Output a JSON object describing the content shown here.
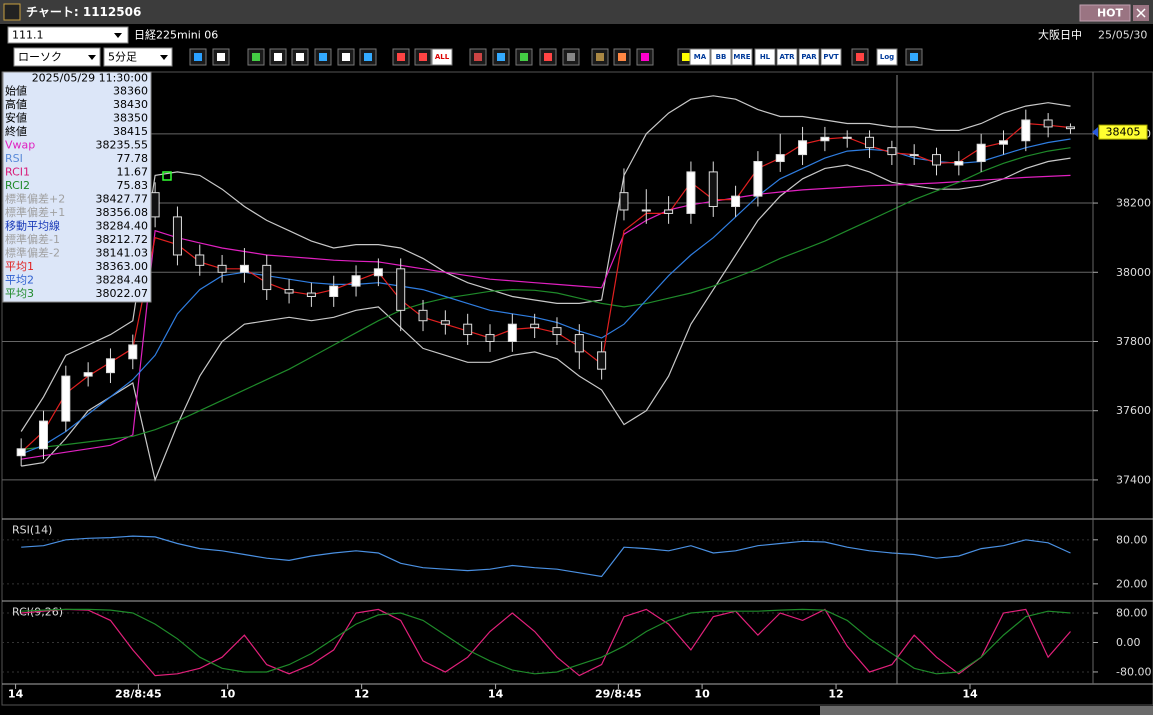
{
  "window": {
    "title": "チャート: 1112506",
    "hot": "HOT"
  },
  "toolbar": {
    "code": "111.1",
    "instrument": "日経225mini 06",
    "session": "大阪日中",
    "date": "25/05/30",
    "chart_style": "ローソク",
    "interval": "5分足",
    "buttons": [
      "ALL",
      "MA",
      "BB",
      "MRE",
      "HL",
      "ATR",
      "PAR",
      "PVT",
      "Log"
    ]
  },
  "info_box": {
    "datetime": "2025/05/29 11:30:00",
    "rows": [
      {
        "label": "始値",
        "value": "38360",
        "color": "#000000"
      },
      {
        "label": "高値",
        "value": "38430",
        "color": "#000000"
      },
      {
        "label": "安値",
        "value": "38350",
        "color": "#000000"
      },
      {
        "label": "終値",
        "value": "38415",
        "color": "#000000"
      },
      {
        "label": "Vwap",
        "value": "38235.55",
        "color": "#e020c0"
      },
      {
        "label": "RSI",
        "value": "77.78",
        "color": "#5a8ad8"
      },
      {
        "label": "RCI1",
        "value": "11.67",
        "color": "#d81a78"
      },
      {
        "label": "RCI2",
        "value": "75.83",
        "color": "#1f8a2a"
      },
      {
        "label": "標準偏差+2",
        "value": "38427.77",
        "color": "#a0a0a0"
      },
      {
        "label": "標準偏差+1",
        "value": "38356.08",
        "color": "#a0a0a0"
      },
      {
        "label": "移動平均線",
        "value": "38284.40",
        "color": "#1a3ab8"
      },
      {
        "label": "標準偏差-1",
        "value": "38212.72",
        "color": "#a0a0a0"
      },
      {
        "label": "標準偏差-2",
        "value": "38141.03",
        "color": "#a0a0a0"
      },
      {
        "label": "平均1",
        "value": "38363.00",
        "color": "#e02020"
      },
      {
        "label": "平均2",
        "value": "38284.40",
        "color": "#2f60d0"
      },
      {
        "label": "平均3",
        "value": "38022.07",
        "color": "#1f8a2a"
      }
    ]
  },
  "chart_data": [
    {
      "type": "candlestick",
      "x": [
        2,
        6,
        10,
        14,
        18,
        22,
        26,
        30,
        34,
        38,
        42,
        46,
        50,
        54,
        58,
        62,
        66,
        70,
        74,
        78,
        82,
        86,
        90,
        94,
        98,
        102,
        106,
        110,
        114,
        118,
        122,
        126,
        130,
        134,
        138,
        142,
        146,
        150,
        154,
        158,
        162,
        166,
        170,
        174,
        178,
        182,
        186,
        190
      ],
      "open": [
        37470,
        37490,
        37570,
        37700,
        37710,
        37750,
        38230,
        38160,
        38050,
        38020,
        38000,
        38020,
        37950,
        37940,
        37930,
        37960,
        37990,
        38010,
        37890,
        37860,
        37850,
        37820,
        37800,
        37850,
        37840,
        37820,
        37770,
        38230,
        38180,
        38180,
        38170,
        38290,
        38190,
        38220,
        38320,
        38340,
        38380,
        38390,
        38390,
        38360,
        38340,
        38340,
        38310,
        38320,
        38370,
        38380,
        38440,
        38420
      ],
      "high": [
        37520,
        37600,
        37730,
        37740,
        37780,
        37820,
        38260,
        38190,
        38080,
        38050,
        38070,
        38050,
        37980,
        37970,
        37990,
        38020,
        38040,
        38040,
        37920,
        37890,
        37880,
        37850,
        37880,
        37880,
        37870,
        37850,
        37800,
        38300,
        38240,
        38220,
        38320,
        38320,
        38250,
        38350,
        38400,
        38420,
        38420,
        38410,
        38410,
        38380,
        38370,
        38360,
        38350,
        38400,
        38410,
        38470,
        38460,
        38430
      ],
      "low": [
        37440,
        37460,
        37540,
        37670,
        37680,
        37720,
        38130,
        38020,
        37990,
        37970,
        37970,
        37920,
        37910,
        37900,
        37900,
        37930,
        37960,
        37830,
        37830,
        37820,
        37790,
        37770,
        37770,
        37810,
        37790,
        37720,
        37690,
        38150,
        38140,
        38140,
        38140,
        38160,
        38160,
        38190,
        38290,
        38310,
        38350,
        38360,
        38330,
        38310,
        38310,
        38280,
        38280,
        38290,
        38340,
        38350,
        38390,
        38400
      ],
      "close": [
        37490,
        37570,
        37700,
        37710,
        37750,
        37790,
        38160,
        38050,
        38020,
        38000,
        38020,
        37950,
        37940,
        37930,
        37960,
        37990,
        38010,
        37890,
        37860,
        37850,
        37820,
        37800,
        37850,
        37840,
        37820,
        37770,
        37720,
        38180,
        38180,
        38170,
        38290,
        38190,
        38220,
        38320,
        38340,
        38380,
        38390,
        38390,
        38360,
        38340,
        38340,
        38310,
        38320,
        38370,
        38380,
        38440,
        38420,
        38415
      ],
      "series": [
        {
          "color": "#c8c8c8",
          "values": [
            37540,
            37640,
            37760,
            37790,
            37820,
            37860,
            38280,
            38290,
            38280,
            38240,
            38190,
            38150,
            38120,
            38090,
            38070,
            38080,
            38080,
            38070,
            38040,
            38000,
            37970,
            37950,
            37930,
            37920,
            37910,
            37910,
            37920,
            38280,
            38400,
            38460,
            38500,
            38510,
            38500,
            38470,
            38450,
            38450,
            38440,
            38430,
            38430,
            38420,
            38420,
            38410,
            38410,
            38430,
            38460,
            38480,
            38490,
            38480
          ]
        },
        {
          "color": "#c8c8c8",
          "values": [
            37440,
            37450,
            37520,
            37600,
            37640,
            37680,
            37400,
            37560,
            37700,
            37800,
            37850,
            37860,
            37870,
            37860,
            37870,
            37890,
            37900,
            37840,
            37780,
            37760,
            37740,
            37740,
            37760,
            37770,
            37750,
            37700,
            37660,
            37560,
            37600,
            37700,
            37850,
            37950,
            38050,
            38150,
            38220,
            38270,
            38300,
            38310,
            38290,
            38260,
            38250,
            38240,
            38240,
            38250,
            38270,
            38300,
            38320,
            38330
          ]
        },
        {
          "color": "#e020c0",
          "values": [
            37460,
            37470,
            37480,
            37490,
            37500,
            37530,
            38120,
            38100,
            38085,
            38070,
            38060,
            38050,
            38045,
            38040,
            38035,
            38032,
            38030,
            38020,
            38010,
            38000,
            37990,
            37980,
            37975,
            37970,
            37965,
            37960,
            37955,
            38110,
            38150,
            38180,
            38195,
            38205,
            38215,
            38225,
            38232,
            38238,
            38242,
            38246,
            38250,
            38252,
            38255,
            38258,
            38262,
            38266,
            38270,
            38274,
            38277,
            38280
          ]
        },
        {
          "color": "#1f8a2a",
          "values": [
            37488,
            37495,
            37502,
            37510,
            37518,
            37526,
            37545,
            37570,
            37600,
            37630,
            37660,
            37690,
            37720,
            37755,
            37790,
            37825,
            37860,
            37890,
            37910,
            37925,
            37935,
            37945,
            37950,
            37948,
            37940,
            37925,
            37910,
            37900,
            37910,
            37925,
            37940,
            37960,
            37985,
            38010,
            38040,
            38065,
            38090,
            38120,
            38150,
            38180,
            38210,
            38235,
            38260,
            38290,
            38315,
            38335,
            38350,
            38360
          ]
        },
        {
          "color": "#2f7de0",
          "values": [
            37475,
            37500,
            37540,
            37590,
            37640,
            37690,
            37760,
            37880,
            37950,
            37990,
            38000,
            37990,
            37980,
            37970,
            37965,
            37965,
            37970,
            37960,
            37950,
            37930,
            37910,
            37890,
            37880,
            37870,
            37855,
            37830,
            37810,
            37850,
            37920,
            37990,
            38050,
            38100,
            38160,
            38220,
            38270,
            38300,
            38330,
            38350,
            38355,
            38350,
            38330,
            38320,
            38315,
            38320,
            38340,
            38360,
            38375,
            38385
          ]
        },
        {
          "color": "#e02020",
          "values": [
            37480,
            37540,
            37650,
            37700,
            37740,
            37780,
            38100,
            38080,
            38030,
            38010,
            38010,
            37970,
            37945,
            37935,
            37950,
            37975,
            38000,
            37920,
            37870,
            37850,
            37830,
            37810,
            37835,
            37840,
            37825,
            37785,
            37735,
            38120,
            38170,
            38170,
            38260,
            38210,
            38210,
            38300,
            38330,
            38370,
            38385,
            38390,
            38365,
            38345,
            38340,
            38315,
            38318,
            38360,
            38375,
            38430,
            38425,
            38418
          ]
        }
      ],
      "xlim": [
        0,
        193.5
      ],
      "xticks": [
        {
          "value": 1,
          "label": "14"
        },
        {
          "value": 23,
          "label": "28/8:45"
        },
        {
          "value": 39,
          "label": "10"
        },
        {
          "value": 63,
          "label": "12"
        },
        {
          "value": 87,
          "label": "14"
        },
        {
          "value": 109,
          "label": "29/8:45"
        },
        {
          "value": 124,
          "label": "10"
        },
        {
          "value": 148,
          "label": "12"
        },
        {
          "value": 172,
          "label": "14"
        }
      ],
      "ylim": [
        37290,
        38570
      ],
      "yticks": [
        37400,
        37600,
        37800,
        38000,
        38200,
        38400
      ],
      "grid": true,
      "last_price": 38405
    },
    {
      "type": "line",
      "title": "RSI(14)",
      "ylim": [
        -2,
        107
      ],
      "yticks": [
        {
          "value": 20,
          "label": "20.00"
        },
        {
          "value": 80,
          "label": "80.00"
        }
      ],
      "series": [
        {
          "color": "#4a90e2",
          "values": [
            70,
            72,
            80,
            82,
            83,
            85,
            84,
            75,
            68,
            65,
            60,
            55,
            52,
            58,
            62,
            65,
            62,
            48,
            42,
            40,
            38,
            40,
            45,
            42,
            40,
            35,
            30,
            70,
            68,
            65,
            72,
            62,
            65,
            72,
            75,
            78,
            77,
            70,
            65,
            62,
            60,
            55,
            58,
            68,
            72,
            80,
            76,
            62
          ]
        }
      ]
    },
    {
      "type": "line",
      "title": "RCI(9,26)",
      "ylim": [
        -110,
        110
      ],
      "yticks": [
        {
          "value": 80,
          "label": "80.00"
        },
        {
          "value": 0,
          "label": "0.00"
        },
        {
          "value": -80,
          "label": "-80.00"
        }
      ],
      "series": [
        {
          "color": "#e0207a",
          "values": [
            80,
            85,
            90,
            88,
            60,
            -20,
            -90,
            -85,
            -70,
            -40,
            20,
            -60,
            -85,
            -60,
            -20,
            80,
            90,
            60,
            -50,
            -80,
            -40,
            30,
            80,
            30,
            -40,
            -90,
            -60,
            70,
            90,
            50,
            -20,
            70,
            85,
            20,
            80,
            60,
            90,
            -10,
            -80,
            -60,
            20,
            -40,
            -85,
            -40,
            80,
            90,
            -40,
            30
          ]
        },
        {
          "color": "#1f8a2a",
          "values": [
            85,
            88,
            90,
            90,
            88,
            80,
            50,
            10,
            -40,
            -70,
            -80,
            -80,
            -60,
            -30,
            10,
            50,
            75,
            80,
            60,
            20,
            -20,
            -50,
            -75,
            -85,
            -80,
            -60,
            -40,
            -10,
            30,
            60,
            80,
            85,
            85,
            85,
            88,
            90,
            88,
            60,
            10,
            -30,
            -70,
            -85,
            -80,
            -40,
            20,
            70,
            85,
            80
          ]
        }
      ]
    }
  ]
}
